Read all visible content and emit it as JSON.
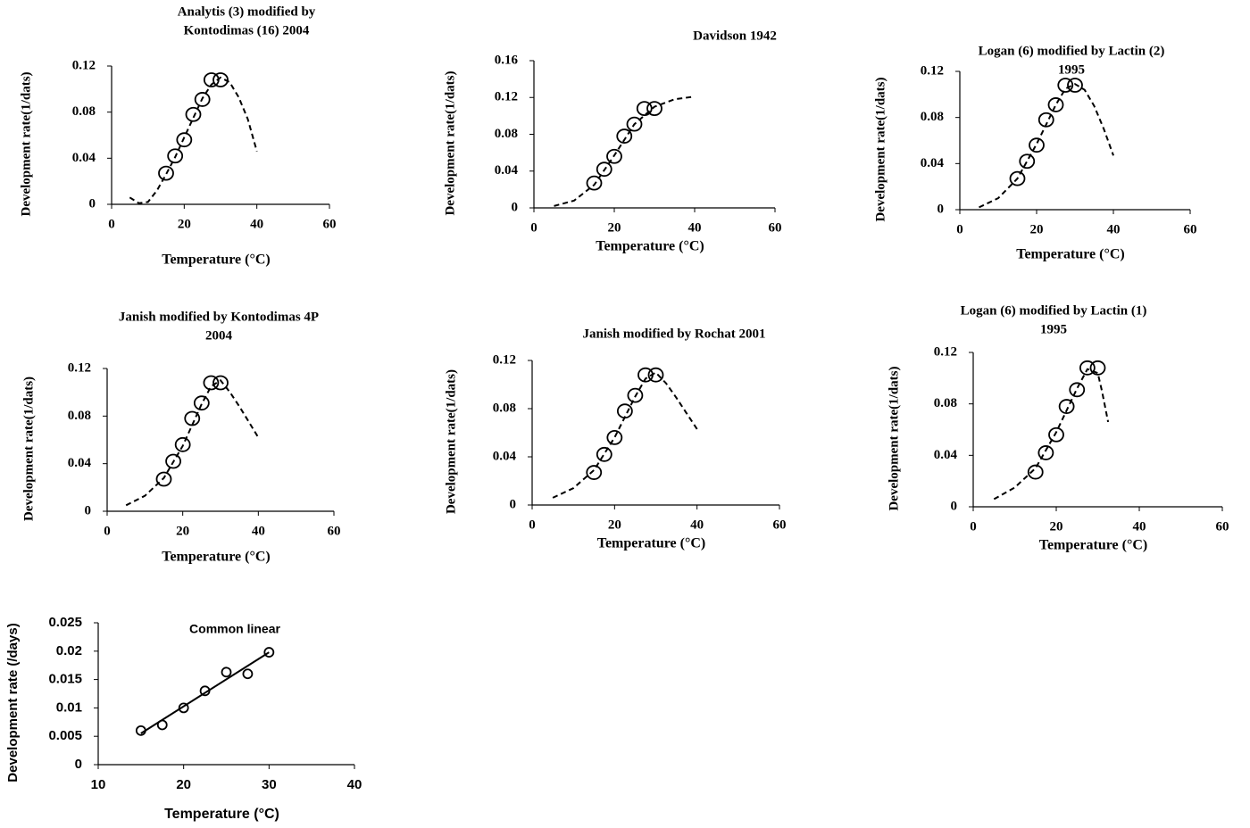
{
  "chart_data": [
    {
      "type": "scatter",
      "title": [
        "Analytis (3) modified by",
        "Kontodimas (16) 2004"
      ],
      "x_label": "Temperature (°C)",
      "y_label": "Development rate(1/dats)",
      "xlim": [
        0,
        60
      ],
      "xticks": [
        0,
        20,
        40,
        60
      ],
      "ylim": [
        0,
        0.12
      ],
      "yticks": [
        0,
        0.04,
        0.08,
        0.12
      ],
      "series": [
        {
          "x": [
            15,
            17.5,
            20,
            22.5,
            25,
            27.5,
            30
          ],
          "values": [
            0.027,
            0.042,
            0.056,
            0.078,
            0.091,
            0.108,
            0.108
          ],
          "color": "#000000",
          "marker": "circle"
        },
        {
          "x": [
            5,
            7.5,
            10,
            12.5,
            15,
            17.5,
            20,
            22.5,
            25,
            27.5,
            30,
            32.5,
            35,
            37.5,
            40
          ],
          "values": [
            0.006,
            0.001,
            0.002,
            0.012,
            0.026,
            0.041,
            0.058,
            0.075,
            0.092,
            0.104,
            0.11,
            0.106,
            0.093,
            0.074,
            0.046
          ],
          "color": "#000000",
          "line": "dashed"
        }
      ]
    },
    {
      "type": "scatter",
      "title": [
        "Davidson 1942"
      ],
      "x_label": "Temperature (°C)",
      "y_label": "Development rate(1/dats)",
      "xlim": [
        0,
        60
      ],
      "xticks": [
        0,
        20,
        40,
        60
      ],
      "ylim": [
        0,
        0.16
      ],
      "yticks": [
        0,
        0.04,
        0.08,
        0.12,
        0.16
      ],
      "series": [
        {
          "x": [
            15,
            17.5,
            20,
            22.5,
            25,
            27.5,
            30
          ],
          "values": [
            0.027,
            0.042,
            0.056,
            0.078,
            0.091,
            0.108,
            0.108
          ],
          "color": "#000000",
          "marker": "circle"
        },
        {
          "x": [
            5,
            10,
            15,
            20,
            25,
            30,
            35,
            40
          ],
          "values": [
            0.002,
            0.008,
            0.025,
            0.057,
            0.091,
            0.11,
            0.118,
            0.121
          ],
          "color": "#000000",
          "line": "dashed"
        }
      ]
    },
    {
      "type": "scatter",
      "title": [
        "Logan (6) modified by Lactin (2)",
        "1995"
      ],
      "x_label": "Temperature (°C)",
      "y_label": "Development rate(1/dats)",
      "xlim": [
        0,
        60
      ],
      "xticks": [
        0,
        20,
        40,
        60
      ],
      "ylim": [
        0,
        0.12
      ],
      "yticks": [
        0,
        0.04,
        0.08,
        0.12
      ],
      "series": [
        {
          "x": [
            15,
            17.5,
            20,
            22.5,
            25,
            27.5,
            30
          ],
          "values": [
            0.027,
            0.042,
            0.056,
            0.078,
            0.091,
            0.108,
            0.108
          ],
          "color": "#000000",
          "marker": "circle"
        },
        {
          "x": [
            5,
            10,
            15,
            20,
            25,
            27.5,
            30,
            32.5,
            35,
            37.5,
            40
          ],
          "values": [
            0.002,
            0.01,
            0.027,
            0.057,
            0.091,
            0.105,
            0.109,
            0.104,
            0.09,
            0.07,
            0.047
          ],
          "color": "#000000",
          "line": "dashed"
        }
      ]
    },
    {
      "type": "scatter",
      "title": [
        "Janish modified by Kontodimas 4P",
        "2004"
      ],
      "x_label": "Temperature (°C)",
      "y_label": "Development rate(1/dats)",
      "xlim": [
        0,
        60
      ],
      "xticks": [
        0,
        20,
        40,
        60
      ],
      "ylim": [
        0,
        0.12
      ],
      "yticks": [
        0,
        0.04,
        0.08,
        0.12
      ],
      "series": [
        {
          "x": [
            15,
            17.5,
            20,
            22.5,
            25,
            27.5,
            30
          ],
          "values": [
            0.027,
            0.042,
            0.056,
            0.078,
            0.091,
            0.108,
            0.108
          ],
          "color": "#000000",
          "marker": "circle"
        },
        {
          "x": [
            5,
            10,
            15,
            20,
            25,
            27.5,
            30,
            32.5,
            35,
            37.5,
            40
          ],
          "values": [
            0.005,
            0.013,
            0.028,
            0.055,
            0.09,
            0.105,
            0.11,
            0.1,
            0.088,
            0.075,
            0.062
          ],
          "color": "#000000",
          "line": "dashed"
        }
      ]
    },
    {
      "type": "scatter",
      "title": [
        "Janish modified by Rochat 2001"
      ],
      "x_label": "Temperature (°C)",
      "y_label": "Development rate(1/dats)",
      "xlim": [
        0,
        60
      ],
      "xticks": [
        0,
        20,
        40,
        60
      ],
      "ylim": [
        0,
        0.12
      ],
      "yticks": [
        0,
        0.04,
        0.08,
        0.12
      ],
      "series": [
        {
          "x": [
            15,
            17.5,
            20,
            22.5,
            25,
            27.5,
            30
          ],
          "values": [
            0.027,
            0.042,
            0.056,
            0.078,
            0.091,
            0.108,
            0.108
          ],
          "color": "#000000",
          "marker": "circle"
        },
        {
          "x": [
            5,
            10,
            15,
            20,
            25,
            27.5,
            30,
            32.5,
            35,
            37.5,
            40
          ],
          "values": [
            0.006,
            0.014,
            0.029,
            0.056,
            0.09,
            0.105,
            0.11,
            0.101,
            0.089,
            0.076,
            0.063
          ],
          "color": "#000000",
          "line": "dashed"
        }
      ]
    },
    {
      "type": "scatter",
      "title": [
        "Logan (6) modified by Lactin (1)",
        "1995"
      ],
      "x_label": "Temperature (°C)",
      "y_label": "Development rate(1/dats)",
      "xlim": [
        0,
        60
      ],
      "xticks": [
        0,
        20,
        40,
        60
      ],
      "ylim": [
        0,
        0.12
      ],
      "yticks": [
        0,
        0.04,
        0.08,
        0.12
      ],
      "series": [
        {
          "x": [
            15,
            17.5,
            20,
            22.5,
            25,
            27.5,
            30
          ],
          "values": [
            0.027,
            0.042,
            0.056,
            0.078,
            0.091,
            0.108,
            0.108
          ],
          "color": "#000000",
          "marker": "circle"
        },
        {
          "x": [
            5,
            10,
            15,
            20,
            25,
            27.5,
            30,
            31,
            32.5
          ],
          "values": [
            0.006,
            0.015,
            0.03,
            0.058,
            0.092,
            0.107,
            0.104,
            0.09,
            0.066
          ],
          "color": "#000000",
          "line": "dashed"
        }
      ]
    },
    {
      "type": "scatter",
      "title": [
        "Common linear"
      ],
      "x_label": "Temperature (°C)",
      "y_label": "Development rate (/days)",
      "xlim": [
        10,
        40
      ],
      "xticks": [
        10,
        20,
        30,
        40
      ],
      "ylim": [
        0,
        0.025
      ],
      "yticks": [
        0,
        0.005,
        0.01,
        0.015,
        0.02,
        0.025
      ],
      "series": [
        {
          "x": [
            15,
            17.5,
            20,
            22.5,
            25,
            27.5,
            30
          ],
          "values": [
            0.006,
            0.007,
            0.01,
            0.013,
            0.0163,
            0.016,
            0.0198
          ],
          "color": "#000000",
          "marker": "circle"
        },
        {
          "x": [
            15,
            30
          ],
          "values": [
            0.0055,
            0.0198
          ],
          "color": "#000000",
          "line": "solid"
        }
      ]
    }
  ]
}
